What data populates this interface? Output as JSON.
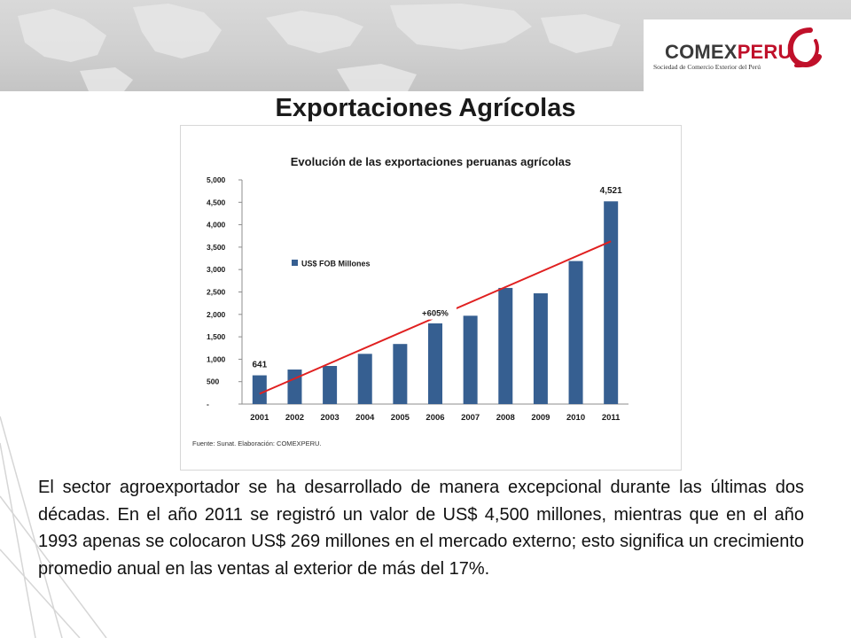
{
  "header": {
    "logo_primary": "COMEX",
    "logo_accent": "PERU",
    "logo_tagline": "Sociedad de Comercio Exterior del Perú",
    "colors": {
      "brand_red": "#c0102a",
      "brand_gray": "#3a3a3a"
    }
  },
  "page": {
    "title": "Exportaciones Agrícolas",
    "paragraph": "El sector agroexportador se ha desarrollado de manera excepcional durante las últimas dos décadas. En el año 2011 se registró un valor de US$ 4,500 millones, mientras que en el año 1993 apenas se colocaron US$ 269 millones en el mercado externo; esto significa un crecimiento promedio anual en las ventas al exterior de más del 17%."
  },
  "chart_data": {
    "type": "bar",
    "title": "Evolución de las exportaciones peruanas agrícolas",
    "xlabel": "",
    "ylabel": "",
    "categories": [
      "2001",
      "2002",
      "2003",
      "2004",
      "2005",
      "2006",
      "2007",
      "2008",
      "2009",
      "2010",
      "2011"
    ],
    "series": [
      {
        "name": "US$ FOB Millones",
        "color": "#365f91",
        "values": [
          641,
          770,
          850,
          1120,
          1340,
          1800,
          1970,
          2590,
          2470,
          3190,
          4521
        ]
      }
    ],
    "ylim": [
      0,
      5000
    ],
    "yticks": [
      0,
      500,
      1000,
      1500,
      2000,
      2500,
      3000,
      3500,
      4000,
      4500,
      5000
    ],
    "ytick_labels": [
      "-",
      "500",
      "1,000",
      "1,500",
      "2,000",
      "2,500",
      "3,000",
      "3,500",
      "4,000",
      "4,500",
      "5,000"
    ],
    "data_labels": [
      {
        "category": "2001",
        "text": "641"
      },
      {
        "category": "2011",
        "text": "4,521"
      }
    ],
    "trend_line": {
      "color": "#e02020",
      "from": {
        "category": "2001",
        "value": 230
      },
      "to": {
        "category": "2011",
        "value": 3630
      }
    },
    "annotation": {
      "text": "+605%"
    },
    "legend_position": "inside-left",
    "grid": false,
    "source_note": "Fuente: Sunat. Elaboración: COMEXPERU."
  }
}
